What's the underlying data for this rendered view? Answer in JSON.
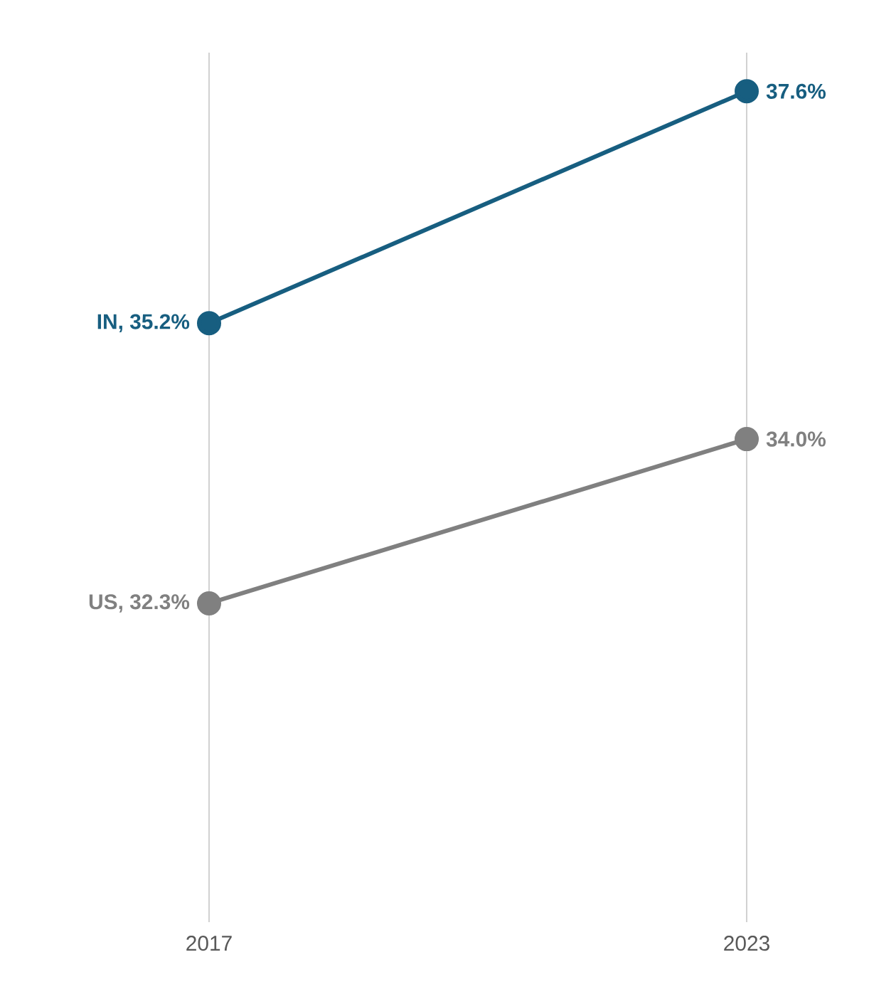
{
  "chart_data": {
    "type": "line",
    "categories": [
      "2017",
      "2023"
    ],
    "series": [
      {
        "color": "#175e80",
        "values": [
          35.2,
          37.6
        ],
        "value_labels": [
          "IN, 35.2%",
          "37.6%"
        ]
      },
      {
        "color": "#808080",
        "values": [
          32.3,
          34.0
        ],
        "value_labels": [
          "US, 32.3%",
          "34.0%"
        ]
      }
    ],
    "ylim": [
      29,
      38
    ],
    "grid": "x",
    "marker": "circle",
    "tick_labels": "x"
  }
}
